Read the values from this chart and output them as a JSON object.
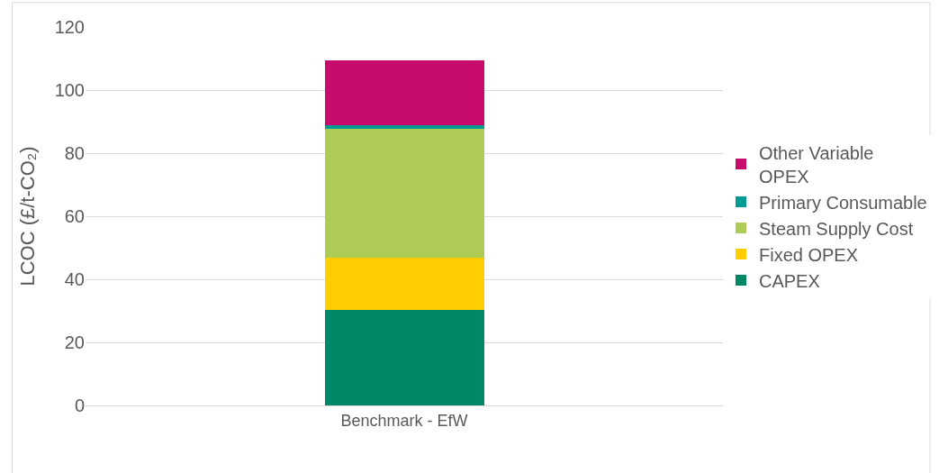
{
  "chart_data": {
    "type": "bar",
    "stacked": true,
    "ylabel": "LCOC (£/t-CO₂)",
    "categories": [
      "Benchmark - EfW"
    ],
    "series": [
      {
        "name": "CAPEX",
        "color": "#008768",
        "values": [
          30.2
        ]
      },
      {
        "name": "Fixed OPEX",
        "color": "#ffcd00",
        "values": [
          16.7
        ]
      },
      {
        "name": "Steam Supply Cost",
        "color": "#afcb57",
        "values": [
          40.8
        ]
      },
      {
        "name": "Primary Consumable",
        "color": "#009b95",
        "values": [
          1.2
        ]
      },
      {
        "name": "Other Variable OPEX",
        "color": "#c80c6d",
        "values": [
          20.4
        ]
      }
    ],
    "ylim": [
      0,
      120
    ],
    "yticks": [
      0,
      20,
      40,
      60,
      80,
      100,
      120
    ],
    "grid": "y",
    "legend": "right"
  }
}
